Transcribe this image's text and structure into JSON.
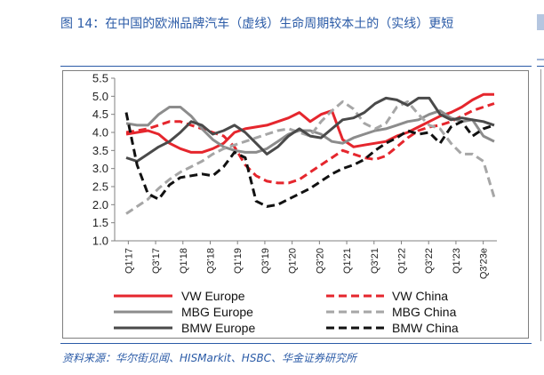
{
  "figure": {
    "title": "图 14：在中国的欧洲品牌汽车（虚线）生命周期较本土的（实线）更短",
    "source": "资料来源：华尔街见闻、HISMarkit、HSBC、华金证券研究所"
  },
  "chart_data": {
    "type": "line",
    "title": "",
    "xlabel": "",
    "ylabel": "",
    "ylim": [
      1.0,
      5.5
    ],
    "yticks": [
      "1.0",
      "1.5",
      "2.0",
      "2.5",
      "3.0",
      "3.5",
      "4.0",
      "4.5",
      "5.0",
      "5.5"
    ],
    "x_tick_labels": [
      "Q1'17",
      "Q3'17",
      "Q1'18",
      "Q3'18",
      "Q1'19",
      "Q3'19",
      "Q1'20",
      "Q3'20",
      "Q1'21",
      "Q3'21",
      "Q1'22",
      "Q3'22",
      "Q1'23",
      "Q3'23e"
    ],
    "grid": false,
    "legend_position": "bottom",
    "series": [
      {
        "name": "VW Europe",
        "color": "#e5262d",
        "dash": "solid",
        "values": [
          3.95,
          4.0,
          4.05,
          3.95,
          3.7,
          3.55,
          3.45,
          3.45,
          3.55,
          3.7,
          4.0,
          4.1,
          4.15,
          4.2,
          4.3,
          4.4,
          4.55,
          4.3,
          4.5,
          4.6,
          3.8,
          3.6,
          3.65,
          3.7,
          3.75,
          3.9,
          4.0,
          4.15,
          4.3,
          4.45,
          4.55,
          4.7,
          4.9,
          5.05,
          5.05
        ]
      },
      {
        "name": "VW China",
        "color": "#e5262d",
        "dash": "dashed",
        "values": [
          4.0,
          4.05,
          4.1,
          4.2,
          4.3,
          4.3,
          4.2,
          4.1,
          4.0,
          3.9,
          3.6,
          3.1,
          2.8,
          2.65,
          2.6,
          2.6,
          2.7,
          2.9,
          3.1,
          3.3,
          3.5,
          3.4,
          3.3,
          3.25,
          3.35,
          3.6,
          3.85,
          4.05,
          4.15,
          4.2,
          4.3,
          4.45,
          4.6,
          4.7,
          4.8
        ]
      },
      {
        "name": "MBG Europe",
        "color": "#8c8c8c",
        "dash": "solid",
        "values": [
          4.25,
          4.2,
          4.2,
          4.5,
          4.7,
          4.7,
          4.45,
          4.1,
          3.8,
          3.6,
          3.5,
          3.45,
          3.45,
          3.55,
          3.75,
          3.95,
          4.05,
          4.05,
          3.95,
          3.75,
          3.7,
          3.85,
          3.95,
          4.05,
          4.1,
          4.2,
          4.3,
          4.35,
          4.5,
          4.6,
          4.4,
          4.3,
          4.35,
          3.9,
          3.75
        ]
      },
      {
        "name": "MBG China",
        "color": "#a6a6a6",
        "dash": "dashed",
        "values": [
          1.75,
          1.95,
          2.15,
          2.45,
          2.7,
          2.9,
          3.05,
          3.2,
          3.4,
          3.55,
          3.65,
          3.75,
          3.85,
          3.95,
          4.05,
          4.1,
          4.0,
          3.9,
          4.3,
          4.6,
          4.85,
          4.65,
          4.25,
          4.1,
          4.25,
          4.7,
          4.85,
          4.5,
          4.2,
          4.1,
          3.7,
          3.4,
          3.4,
          3.2,
          2.2
        ]
      },
      {
        "name": "BMW Europe",
        "color": "#4a4a4a",
        "dash": "solid",
        "values": [
          3.3,
          3.2,
          3.4,
          3.6,
          3.75,
          4.0,
          4.3,
          4.2,
          3.95,
          4.05,
          4.2,
          4.0,
          3.7,
          3.4,
          3.6,
          3.9,
          4.1,
          3.9,
          3.85,
          4.1,
          4.35,
          4.4,
          4.55,
          4.8,
          4.95,
          4.9,
          4.75,
          4.95,
          4.95,
          4.5,
          4.35,
          4.4,
          4.35,
          4.3,
          4.2
        ]
      },
      {
        "name": "BMW China",
        "color": "#111111",
        "dash": "dashed",
        "values": [
          4.55,
          3.1,
          2.3,
          2.15,
          2.55,
          2.75,
          2.8,
          2.85,
          2.8,
          3.05,
          3.45,
          3.3,
          2.1,
          1.95,
          2.0,
          2.15,
          2.3,
          2.45,
          2.65,
          2.85,
          3.0,
          3.1,
          3.25,
          3.5,
          3.7,
          3.85,
          4.05,
          3.95,
          4.0,
          3.7,
          4.15,
          4.3,
          3.9,
          4.1,
          4.2
        ]
      }
    ]
  }
}
